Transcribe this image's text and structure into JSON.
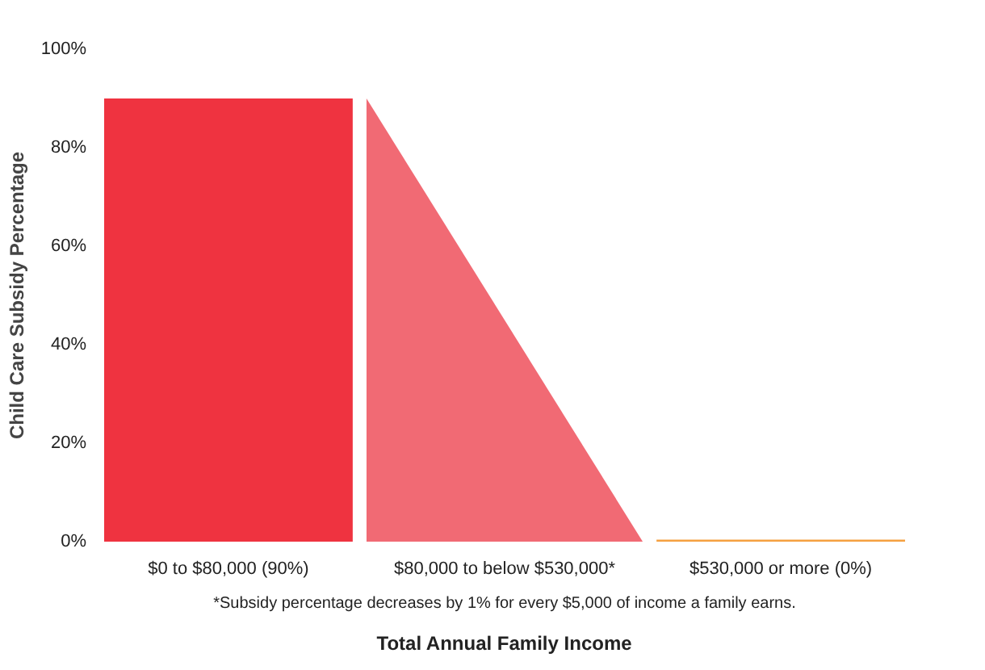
{
  "chart_data": {
    "type": "bar",
    "xlabel": "Total Annual Family Income",
    "ylabel": "Child Care Subsidy Percentage",
    "annotations": [
      "*Subsidy percentage decreases by 1% for every $5,000 of income a family earns."
    ],
    "categories": [
      "$0 to $80,000 (90%)",
      null,
      "$80,000 to below $530,000*",
      null,
      "$530,000 or more (0%)"
    ],
    "ylim": [
      0,
      100
    ],
    "yticks": [
      {
        "value": 0,
        "label": "0%"
      },
      {
        "value": 20,
        "label": "20%"
      },
      {
        "value": 40,
        "label": "40%"
      },
      {
        "value": 60,
        "label": "60%"
      },
      {
        "value": 80,
        "label": "80%"
      },
      {
        "value": 100,
        "label": "100%"
      }
    ],
    "grid": false,
    "series": [
      {
        "colors": [
          "#ef3340",
          null,
          null,
          null,
          "#f5a040"
        ],
        "values": [
          90,
          null,
          null,
          null,
          0
        ]
      },
      {
        "type": "area",
        "color": "#f16a74",
        "values": [
          null,
          90,
          45,
          0,
          null
        ]
      }
    ]
  }
}
